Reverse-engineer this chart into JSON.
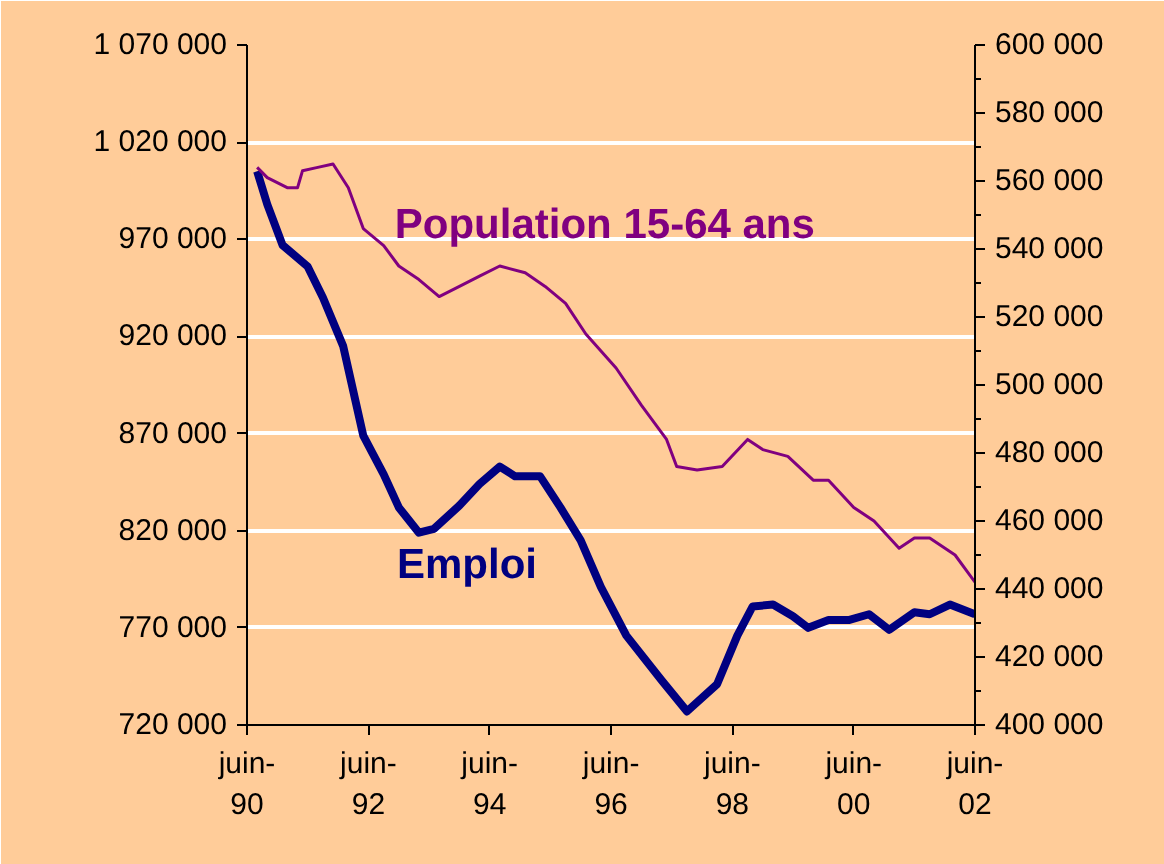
{
  "chart_data": {
    "type": "line",
    "xlim": [
      "1990-06",
      "2002-06"
    ],
    "xticks": [
      {
        "value": "1990-06",
        "label": "juin-\n90"
      },
      {
        "value": "1992-06",
        "label": "juin-\n92"
      },
      {
        "value": "1994-06",
        "label": "juin-\n94"
      },
      {
        "value": "1996-06",
        "label": "juin-\n96"
      },
      {
        "value": "1998-06",
        "label": "juin-\n98"
      },
      {
        "value": "2000-06",
        "label": "juin-\n00"
      },
      {
        "value": "2002-06",
        "label": "juin-\n02"
      }
    ],
    "ylim": [
      720000,
      1070000
    ],
    "yticks": [
      {
        "value": 720000,
        "label": "720 000"
      },
      {
        "value": 770000,
        "label": "770 000"
      },
      {
        "value": 820000,
        "label": "820 000"
      },
      {
        "value": 870000,
        "label": "870 000"
      },
      {
        "value": 920000,
        "label": "920 000"
      },
      {
        "value": 970000,
        "label": "970 000"
      },
      {
        "value": 1020000,
        "label": "1 020 000"
      },
      {
        "value": 1070000,
        "label": "1 070 000"
      }
    ],
    "y2lim": [
      400000,
      600000
    ],
    "y2ticks": [
      {
        "value": 400000,
        "label": "400 000"
      },
      {
        "value": 420000,
        "label": "420 000"
      },
      {
        "value": 440000,
        "label": "440 000"
      },
      {
        "value": 460000,
        "label": "460 000"
      },
      {
        "value": 480000,
        "label": "480 000"
      },
      {
        "value": 500000,
        "label": "500 000"
      },
      {
        "value": 520000,
        "label": "520 000"
      },
      {
        "value": 540000,
        "label": "540 000"
      },
      {
        "value": 560000,
        "label": "560 000"
      },
      {
        "value": 580000,
        "label": "580 000"
      },
      {
        "value": 600000,
        "label": "600 000"
      }
    ],
    "grid": "y",
    "legend": false,
    "marker": "none",
    "line_style": "solid",
    "series": [
      {
        "name": "Emploi",
        "color": "#000080",
        "x": [
          "1990-08",
          "1990-10",
          "1991-01",
          "1991-06",
          "1991-09",
          "1992-01",
          "1992-05",
          "1992-09",
          "1992-12",
          "1993-04",
          "1993-07",
          "1993-12",
          "1994-04",
          "1994-08",
          "1994-11",
          "1995-04",
          "1995-08",
          "1995-12",
          "1996-04",
          "1996-09",
          "1997-04",
          "1997-09",
          "1998-03",
          "1998-07",
          "1998-10",
          "1999-02",
          "1999-06",
          "1999-09",
          "2000-01",
          "2000-05",
          "2000-09",
          "2001-01",
          "2001-06",
          "2001-09",
          "2002-01",
          "2002-06"
        ],
        "values": [
          1005000,
          988000,
          967000,
          956000,
          940000,
          915000,
          869000,
          849000,
          832000,
          819000,
          821000,
          833000,
          844000,
          853000,
          848000,
          848000,
          832000,
          815000,
          791000,
          766000,
          743000,
          727000,
          741000,
          766000,
          781000,
          782000,
          776000,
          770000,
          774000,
          774000,
          777000,
          769000,
          778000,
          777000,
          782000,
          777000
        ]
      },
      {
        "name": "Population 15-64 ans",
        "color": "#800080",
        "axis": "y2",
        "x": [
          "1990-08",
          "1990-10",
          "1991-02",
          "1991-04",
          "1991-05",
          "1991-08",
          "1991-11",
          "1992-02",
          "1992-05",
          "1992-09",
          "1992-12",
          "1993-04",
          "1993-08",
          "1993-12",
          "1994-04",
          "1994-08",
          "1995-01",
          "1995-05",
          "1995-09",
          "1996-01",
          "1996-07",
          "1996-12",
          "1997-05",
          "1997-07",
          "1997-11",
          "1998-04",
          "1998-09",
          "1998-12",
          "1999-05",
          "1999-10",
          "2000-01",
          "2000-06",
          "2000-10",
          "2001-03",
          "2001-06",
          "2001-09",
          "2002-02",
          "2002-06"
        ],
        "values": [
          564000,
          561000,
          558000,
          558000,
          563000,
          564000,
          565000,
          558000,
          546000,
          541000,
          535000,
          531000,
          526000,
          529000,
          532000,
          535000,
          533000,
          529000,
          524000,
          515000,
          505000,
          494000,
          484000,
          476000,
          475000,
          476000,
          484000,
          481000,
          479000,
          472000,
          472000,
          464000,
          460000,
          452000,
          455000,
          455000,
          450000,
          442000
        ]
      }
    ]
  }
}
